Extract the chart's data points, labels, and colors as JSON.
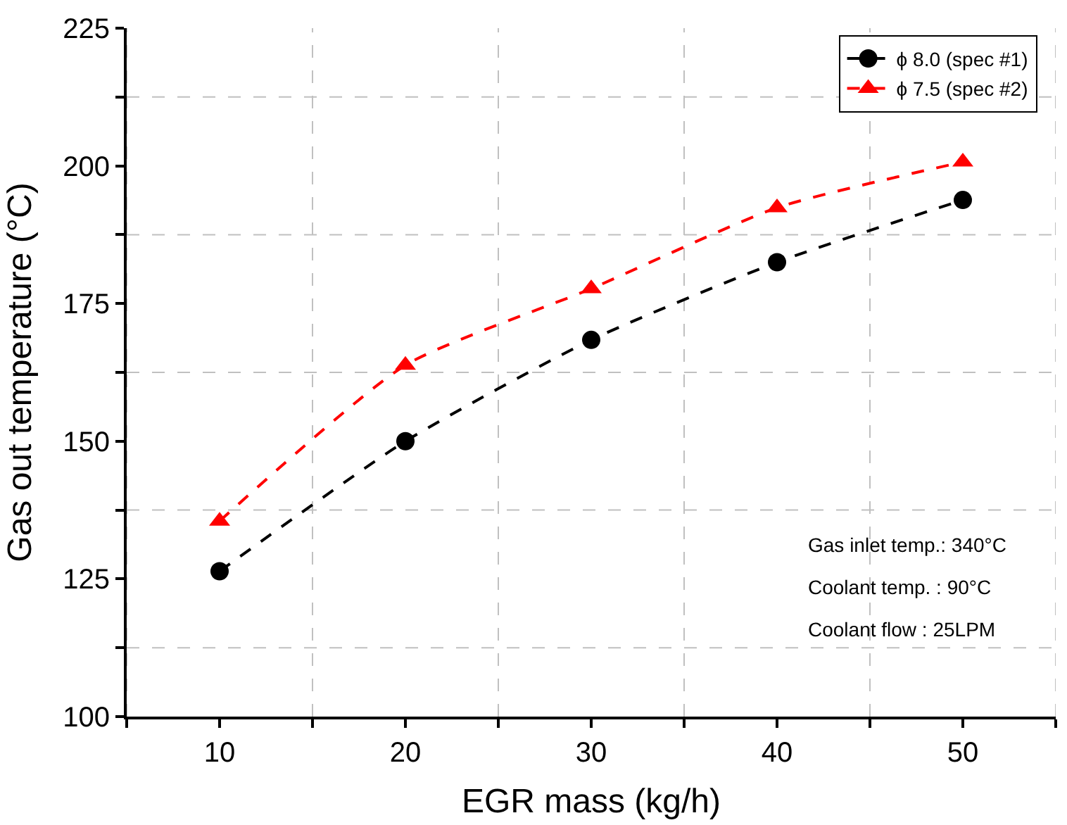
{
  "chart_data": {
    "type": "line",
    "xlabel": "EGR mass (kg/h)",
    "ylabel": "Gas out temperature (°C)",
    "x": [
      10,
      20,
      30,
      40,
      50
    ],
    "series": [
      {
        "name": "ϕ 8.0 (spec #1)",
        "color": "#000000",
        "marker": "circle",
        "values": [
          126.4,
          150,
          168.4,
          182.5,
          193.8
        ]
      },
      {
        "name": "ϕ 7.5 (spec #2)",
        "color": "#ff0000",
        "marker": "triangle",
        "values": [
          135.5,
          163.8,
          177.7,
          192.4,
          200.7
        ]
      }
    ],
    "xlim": [
      5,
      55
    ],
    "ylim": [
      100,
      225
    ],
    "xticks": [
      {
        "value": 5,
        "label": null
      },
      10,
      {
        "value": 15,
        "label": null
      },
      20,
      {
        "value": 25,
        "label": null
      },
      30,
      {
        "value": 35,
        "label": null
      },
      40,
      {
        "value": 45,
        "label": null
      },
      50,
      {
        "value": 55,
        "label": null
      }
    ],
    "yticks": [
      100,
      {
        "value": 112.5,
        "label": null
      },
      125,
      {
        "value": 137.5,
        "label": null
      },
      150,
      {
        "value": 162.5,
        "label": null
      },
      175,
      {
        "value": 187.5,
        "label": null
      },
      200,
      {
        "value": 212.5,
        "label": null
      },
      225
    ],
    "grid": true,
    "legend": "top right",
    "line_style": "dashed",
    "annotations": [
      "Gas inlet temp.: 340°C",
      "Coolant temp. : 90°C",
      "Coolant flow : 25LPM"
    ]
  }
}
